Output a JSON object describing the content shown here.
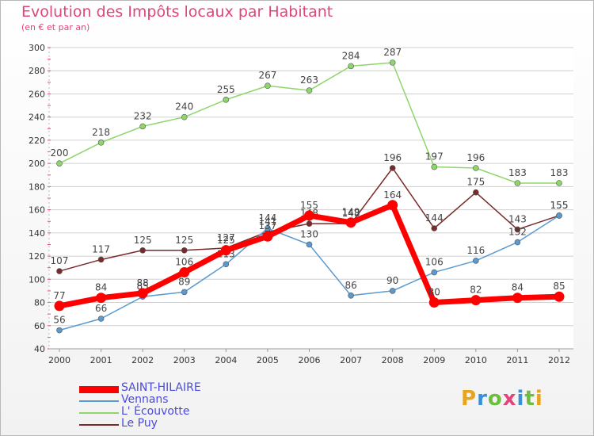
{
  "header": {
    "title": "Evolution des Impôts locaux par Habitant",
    "subtitle": "(en € et par an)"
  },
  "logo": {
    "text": "Proxiti",
    "colors": [
      "#e8a51c",
      "#3a8fd8",
      "#6cbf3c",
      "#e0457b",
      "#3a8fd8",
      "#6cbf3c",
      "#e8a51c"
    ]
  },
  "chart_data": {
    "type": "line",
    "title": "Evolution des Impôts locaux par Habitant",
    "subtitle": "(en € et par an)",
    "xlabel": "",
    "ylabel": "",
    "x": [
      "2000",
      "2001",
      "2002",
      "2003",
      "2004",
      "2005",
      "2006",
      "2007",
      "2008",
      "2009",
      "2010",
      "2011",
      "2012"
    ],
    "ylim": [
      40,
      300
    ],
    "yticks": [
      40,
      60,
      80,
      100,
      120,
      140,
      160,
      180,
      200,
      220,
      240,
      260,
      280,
      300
    ],
    "grid": "horizontal",
    "legend_position": "bottom-left",
    "series": [
      {
        "name": "Le Puy",
        "color": "#7a2a2a",
        "values": [
          107,
          117,
          125,
          125,
          127,
          141,
          148,
          148,
          196,
          144,
          175,
          143,
          155
        ]
      },
      {
        "name": "L' Écouvotte",
        "color": "#8fd66a",
        "values": [
          200,
          218,
          232,
          240,
          255,
          267,
          263,
          284,
          287,
          197,
          196,
          183,
          183
        ]
      },
      {
        "name": "Vennans",
        "color": "#5a9ad0",
        "values": [
          56,
          66,
          85,
          89,
          113,
          144,
          130,
          86,
          90,
          106,
          116,
          132,
          155
        ]
      },
      {
        "name": "SAINT-HILAIRE",
        "color": "#ff0000",
        "values": [
          77,
          84,
          88,
          106,
          125,
          137,
          155,
          149,
          164,
          80,
          82,
          84,
          85
        ]
      }
    ],
    "legend": [
      "SAINT-HILAIRE",
      "Vennans",
      "L' Écouvotte",
      "Le Puy"
    ]
  }
}
